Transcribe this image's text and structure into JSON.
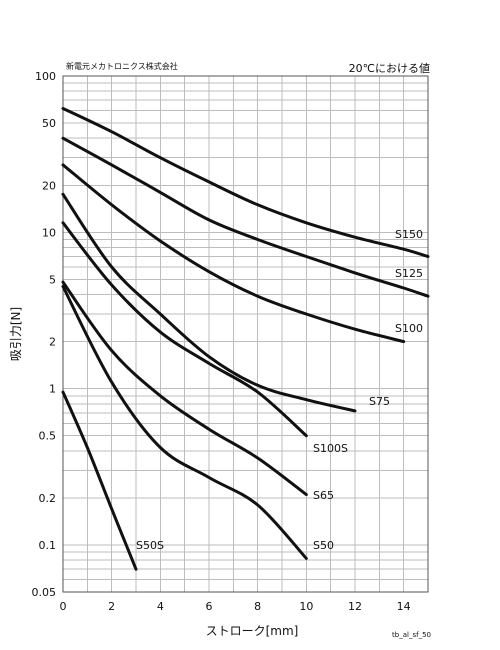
{
  "header": {
    "company": "新電元メカトロニクス株式会社",
    "condition": "20℃における値"
  },
  "footer_code": "tb_al_sf_50",
  "chart_data": {
    "type": "line",
    "title": "",
    "xlabel": "ストローク[mm]",
    "ylabel": "吸引力[N]",
    "xlim": [
      0,
      15
    ],
    "ylim": [
      0.05,
      100
    ],
    "yscale": "log",
    "grid": true,
    "x_ticks": [
      0,
      2,
      4,
      6,
      8,
      10,
      12,
      14
    ],
    "y_ticks": [
      0.05,
      0.1,
      0.2,
      0.5,
      1,
      2,
      5,
      10,
      20,
      50,
      100
    ],
    "y_tick_labels": [
      "0.05",
      "0.1",
      "0.2",
      "0.5",
      "1",
      "2",
      "5",
      "10",
      "20",
      "50",
      "100"
    ],
    "series": [
      {
        "name": "S150",
        "x": [
          0,
          2,
          4,
          6,
          8,
          10,
          12,
          14,
          15
        ],
        "y": [
          62,
          44,
          30,
          21,
          15,
          11.5,
          9.3,
          7.8,
          7.0
        ]
      },
      {
        "name": "S125",
        "x": [
          0,
          2,
          4,
          6,
          8,
          10,
          12,
          14,
          15
        ],
        "y": [
          40,
          27,
          18,
          12,
          9.0,
          7.0,
          5.5,
          4.4,
          3.9
        ]
      },
      {
        "name": "S100",
        "x": [
          0,
          2,
          4,
          6,
          8,
          10,
          12,
          14
        ],
        "y": [
          27,
          15,
          8.8,
          5.6,
          3.9,
          3.0,
          2.4,
          2.0
        ]
      },
      {
        "name": "S75",
        "x": [
          0,
          2,
          4,
          6,
          8,
          10,
          12
        ],
        "y": [
          17.5,
          6.0,
          3.0,
          1.6,
          1.05,
          0.85,
          0.72
        ]
      },
      {
        "name": "S100S",
        "x": [
          0,
          2,
          4,
          6,
          8,
          10
        ],
        "y": [
          11.5,
          4.6,
          2.3,
          1.45,
          0.95,
          0.5
        ]
      },
      {
        "name": "S65",
        "x": [
          0,
          2,
          4,
          6,
          8,
          10
        ],
        "y": [
          4.8,
          1.75,
          0.9,
          0.55,
          0.36,
          0.21
        ]
      },
      {
        "name": "S50",
        "x": [
          0,
          2,
          4,
          6,
          8,
          10
        ],
        "y": [
          4.5,
          1.1,
          0.42,
          0.27,
          0.18,
          0.082
        ]
      },
      {
        "name": "S50S",
        "x": [
          0,
          1,
          2,
          3
        ],
        "y": [
          0.95,
          0.42,
          0.17,
          0.07
        ]
      }
    ]
  }
}
